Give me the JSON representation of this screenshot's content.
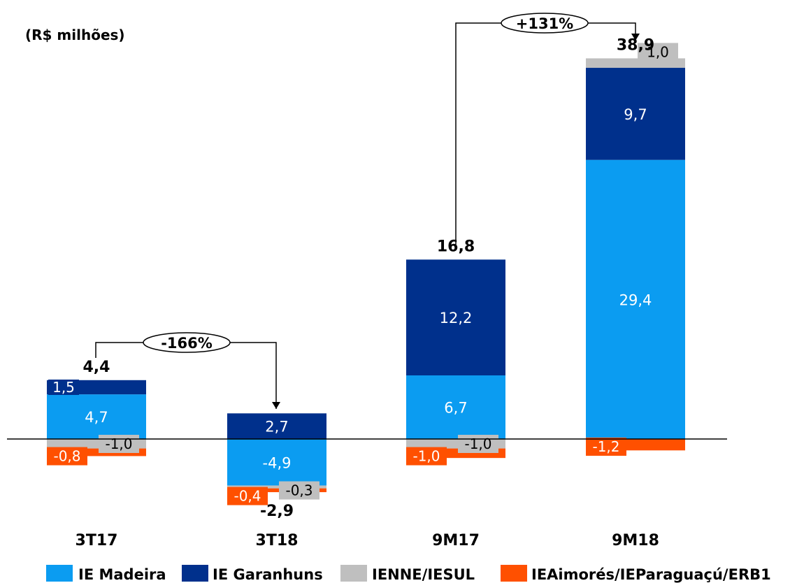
{
  "chart_data": {
    "type": "bar",
    "stacked": true,
    "unit_label": "(R$ milhões)",
    "categories": [
      "3T17",
      "3T18",
      "9M17",
      "9M18"
    ],
    "series": [
      {
        "name": "IE Madeira",
        "color": "#0B9CF1",
        "values": [
          4.7,
          -4.9,
          6.7,
          29.4
        ],
        "labels": [
          "4,7",
          "-4,9",
          "6,7",
          "29,4"
        ]
      },
      {
        "name": "IE Garanhuns",
        "color": "#00308C",
        "values": [
          1.5,
          2.7,
          12.2,
          9.7
        ],
        "labels": [
          "1,5",
          "2,7",
          "12,2",
          "9,7"
        ]
      },
      {
        "name": "IENNE/IESUL",
        "color": "#BFBFBF",
        "values": [
          -1.0,
          -0.3,
          -1.0,
          1.0
        ],
        "labels": [
          "-1,0",
          "-0,3",
          "-1,0",
          "1,0"
        ]
      },
      {
        "name": "IEAimorés/IEParaguaçú/ERB1",
        "color": "#FF5000",
        "values": [
          -0.8,
          -0.4,
          -1.0,
          -1.2
        ],
        "labels": [
          "-0,8",
          "-0,4",
          "-1,0",
          "-1,2"
        ]
      }
    ],
    "totals": [
      4.4,
      -2.9,
      16.8,
      38.9
    ],
    "total_labels": [
      "4,4",
      "-2,9",
      "16,8",
      "38,9"
    ],
    "comparisons": [
      {
        "from": 0,
        "to": 1,
        "label": "-166%"
      },
      {
        "from": 2,
        "to": 3,
        "label": "+131%"
      }
    ],
    "legend_position": "bottom",
    "grid": false
  }
}
